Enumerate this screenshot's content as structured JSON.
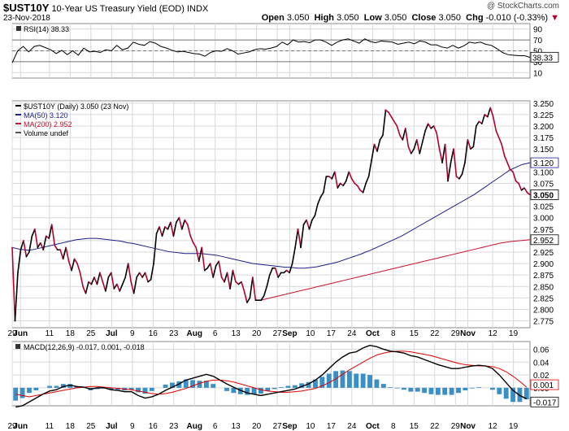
{
  "header": {
    "symbol": "$UST10Y",
    "name": "10-Year US Treasury Yield (EOD)",
    "exchange": "INDX",
    "date": "23-Nov-2018",
    "watermark": "@ StockCharts.com",
    "open_label": "Open",
    "open": "3.050",
    "high_label": "High",
    "high": "3.050",
    "low_label": "Low",
    "low": "3.050",
    "close_label": "Close",
    "close": "3.050",
    "chg_label": "Chg",
    "chg": "-0.010 (-0.33%)"
  },
  "colors": {
    "price": "#000000",
    "down": "#b5002d",
    "ma50": "#1b1f8a",
    "ma200": "#c8102e",
    "rsi": "#000000",
    "macd": "#000000",
    "signal": "#e00000",
    "hist": "#3b8fc4",
    "grid": "#d8d8d8"
  },
  "chart_data": [
    {
      "type": "line",
      "panel": "rsi",
      "legend": [
        "RSI(14) 38.33"
      ],
      "ylim": [
        0,
        100
      ],
      "yticks": [
        "90",
        "70",
        "50",
        "30",
        "10"
      ],
      "levels": [
        70,
        50,
        30
      ],
      "last_value": "38.33",
      "values": [
        28,
        50,
        58,
        48,
        58,
        60,
        56,
        52,
        45,
        51,
        43,
        50,
        42,
        55,
        48,
        49,
        47,
        52,
        50,
        60,
        52,
        55,
        66,
        62,
        60,
        67,
        64,
        58,
        55,
        51,
        48,
        49,
        47,
        45,
        44,
        40,
        47,
        50,
        49,
        54,
        50,
        44,
        46,
        48,
        52,
        54,
        53,
        55,
        58,
        66,
        61,
        70,
        66,
        67,
        65,
        70,
        70,
        66,
        60,
        66,
        70,
        72,
        68,
        64,
        72,
        67,
        65,
        68,
        67,
        66,
        62,
        64,
        66,
        63,
        68,
        66,
        61,
        61,
        57,
        55,
        60,
        55,
        59,
        66,
        64,
        66,
        62,
        60,
        54,
        47,
        43,
        42,
        41,
        41,
        38
      ]
    },
    {
      "type": "line",
      "panel": "price",
      "title": "10-Year US Treasury Yield (EOD)",
      "legend": [
        "$UST10Y (Daily) 3.050 (23 Nov)",
        "MA(50) 3.120",
        "MA(200) 2.952",
        "Volume undef"
      ],
      "ylim": [
        2.76,
        3.255
      ],
      "yticks": [
        "3.250",
        "3.225",
        "3.200",
        "3.175",
        "3.150",
        "3.125",
        "3.100",
        "3.075",
        "3.050",
        "3.025",
        "3.000",
        "2.975",
        "2.950",
        "2.925",
        "2.900",
        "2.875",
        "2.850",
        "2.825",
        "2.800",
        "2.775"
      ],
      "last_labels": {
        "ma50": "3.120",
        "price": "3.050",
        "ma200": "2.952"
      },
      "x_labels": [
        "29",
        "Jun",
        "11",
        "18",
        "25",
        "Jul",
        "9",
        "16",
        "23",
        "Aug",
        "6",
        "13",
        "20",
        "27",
        "Sep",
        "10",
        "17",
        "24",
        "Oct",
        "8",
        "15",
        "22",
        "29",
        "Nov",
        "12",
        "19"
      ],
      "x_label_index": [
        0,
        2,
        9,
        14,
        19,
        24,
        29,
        34,
        39,
        44,
        49,
        54,
        59,
        64,
        67,
        72,
        77,
        82,
        87,
        92,
        97,
        102,
        107,
        110,
        116,
        121
      ],
      "bold_x_labels": [
        "Jun",
        "Jul",
        "Aug",
        "Sep",
        "Oct",
        "Nov"
      ],
      "price": [
        2.935,
        2.775,
        2.88,
        2.93,
        2.95,
        2.915,
        2.925,
        2.96,
        2.975,
        2.935,
        2.945,
        2.93,
        2.96,
        2.955,
        2.985,
        2.94,
        2.93,
        2.93,
        2.91,
        2.935,
        2.905,
        2.885,
        2.91,
        2.9,
        2.88,
        2.85,
        2.835,
        2.86,
        2.855,
        2.87,
        2.855,
        2.88,
        2.86,
        2.84,
        2.87,
        2.88,
        2.845,
        2.855,
        2.84,
        2.855,
        2.87,
        2.9,
        2.86,
        2.835,
        2.87,
        2.88,
        2.87,
        2.88,
        2.86,
        2.865,
        2.9,
        2.965,
        2.98,
        2.96,
        2.98,
        2.975,
        2.99,
        2.96,
        2.99,
        3.0,
        2.975,
        2.995,
        2.985,
        2.96,
        2.945,
        2.935,
        2.905,
        2.935,
        2.885,
        2.89,
        2.9,
        2.87,
        2.895,
        2.905,
        2.87,
        2.86,
        2.88,
        2.845,
        2.885,
        2.86,
        2.855,
        2.86,
        2.84,
        2.815,
        2.825,
        2.87,
        2.82,
        2.82,
        2.82,
        2.83,
        2.85,
        2.875,
        2.89,
        2.89,
        2.87,
        2.88,
        2.88,
        2.885,
        2.88,
        2.9,
        2.935,
        2.975,
        2.935,
        2.985,
        2.995,
        2.975,
        2.995,
        3.005,
        3.03,
        3.045,
        3.055,
        3.09,
        3.09,
        3.085,
        3.1,
        3.065,
        3.075,
        3.07,
        3.08,
        3.1,
        3.085,
        3.075,
        3.07,
        3.06,
        3.055,
        3.075,
        3.09,
        3.125,
        3.16,
        3.145,
        3.17,
        3.18,
        3.235,
        3.23,
        3.22,
        3.21,
        3.2,
        3.18,
        3.17,
        3.195,
        3.155,
        3.14,
        3.15,
        3.17,
        3.14,
        3.165,
        3.19,
        3.205,
        3.195,
        3.2,
        3.185,
        3.15,
        3.12,
        3.16,
        3.08,
        3.12,
        3.15,
        3.09,
        3.085,
        3.095,
        3.12,
        3.17,
        3.15,
        3.155,
        3.2,
        3.21,
        3.205,
        3.225,
        3.22,
        3.24,
        3.22,
        3.19,
        3.175,
        3.16,
        3.135,
        3.12,
        3.105,
        3.1,
        3.08,
        3.075,
        3.06,
        3.065,
        3.055,
        3.05
      ],
      "ma50": [
        2.935,
        2.933,
        2.931,
        2.93,
        2.929,
        2.93,
        2.932,
        2.934,
        2.936,
        2.938,
        2.94,
        2.942,
        2.944,
        2.946,
        2.948,
        2.95,
        2.952,
        2.953,
        2.954,
        2.955,
        2.955,
        2.955,
        2.954,
        2.953,
        2.952,
        2.951,
        2.95,
        2.949,
        2.947,
        2.945,
        2.944,
        2.942,
        2.94,
        2.938,
        2.936,
        2.934,
        2.932,
        2.93,
        2.928,
        2.926,
        2.925,
        2.924,
        2.923,
        2.922,
        2.922,
        2.922,
        2.922,
        2.922,
        2.921,
        2.92,
        2.919,
        2.918,
        2.916,
        2.914,
        2.912,
        2.91,
        2.908,
        2.906,
        2.904,
        2.902,
        2.9,
        2.899,
        2.898,
        2.897,
        2.896,
        2.895,
        2.894,
        2.893,
        2.892,
        2.892,
        2.891,
        2.89,
        2.89,
        2.89,
        2.891,
        2.892,
        2.893,
        2.895,
        2.897,
        2.899,
        2.901,
        2.903,
        2.906,
        2.909,
        2.912,
        2.915,
        2.918,
        2.921,
        2.925,
        2.928,
        2.932,
        2.936,
        2.94,
        2.944,
        2.948,
        2.952,
        2.956,
        2.96,
        2.965,
        2.97,
        2.975,
        2.98,
        2.985,
        2.99,
        2.995,
        3.0,
        3.005,
        3.01,
        3.015,
        3.02,
        3.025,
        3.03,
        3.035,
        3.04,
        3.045,
        3.05,
        3.056,
        3.062,
        3.068,
        3.074,
        3.08,
        3.086,
        3.092,
        3.098,
        3.104,
        3.108,
        3.112,
        3.116,
        3.118,
        3.12
      ],
      "ma200": [
        2.82,
        2.825,
        2.83,
        2.835,
        2.84,
        2.845,
        2.85,
        2.855,
        2.86,
        2.865,
        2.87,
        2.875,
        2.88,
        2.885,
        2.89,
        2.895,
        2.9,
        2.905,
        2.91,
        2.915,
        2.92,
        2.925,
        2.93,
        2.935,
        2.94,
        2.945,
        2.948,
        2.95,
        2.952
      ]
    },
    {
      "type": "line",
      "panel": "macd",
      "legend": [
        "MACD(12,26,9) -0.017, 0.001, -0.018"
      ],
      "ylim": [
        -0.028,
        0.072
      ],
      "yticks": [
        "0.06",
        "0.04",
        "0.02",
        "0.00"
      ],
      "last_labels": {
        "signal": "0.001",
        "macd": "-0.017"
      },
      "macd": [
        -0.03,
        -0.028,
        -0.022,
        -0.016,
        -0.01,
        -0.005,
        -0.003,
        0.002,
        0.004,
        0.002,
        0.001,
        -0.002,
        0.0,
        0.0,
        -0.003,
        -0.004,
        -0.006,
        -0.006,
        -0.012,
        -0.016,
        -0.014,
        -0.01,
        -0.004,
        0.001,
        0.006,
        0.012,
        0.015,
        0.018,
        0.021,
        0.018,
        0.012,
        0.006,
        0.001,
        -0.004,
        -0.008,
        -0.01,
        -0.012,
        -0.01,
        -0.008,
        -0.006,
        -0.004,
        -0.002,
        0.002,
        0.006,
        0.012,
        0.02,
        0.03,
        0.04,
        0.048,
        0.054,
        0.056,
        0.062,
        0.066,
        0.064,
        0.06,
        0.057,
        0.056,
        0.054,
        0.05,
        0.048,
        0.044,
        0.04,
        0.036,
        0.033,
        0.03,
        0.03,
        0.032,
        0.034,
        0.035,
        0.034,
        0.03,
        0.02,
        0.008,
        -0.004,
        -0.012,
        -0.017
      ],
      "signal": [
        -0.01,
        -0.012,
        -0.014,
        -0.012,
        -0.01,
        -0.008,
        -0.006,
        -0.004,
        -0.002,
        0.0,
        0.001,
        0.002,
        0.002,
        0.001,
        0.0,
        -0.001,
        -0.002,
        -0.003,
        -0.005,
        -0.007,
        -0.009,
        -0.01,
        -0.009,
        -0.007,
        -0.004,
        -0.001,
        0.003,
        0.007,
        0.01,
        0.012,
        0.012,
        0.011,
        0.009,
        0.006,
        0.003,
        0.0,
        -0.003,
        -0.005,
        -0.006,
        -0.007,
        -0.007,
        -0.006,
        -0.005,
        -0.003,
        -0.001,
        0.003,
        0.008,
        0.014,
        0.021,
        0.028,
        0.034,
        0.04,
        0.046,
        0.051,
        0.054,
        0.056,
        0.057,
        0.057,
        0.056,
        0.054,
        0.052,
        0.05,
        0.047,
        0.044,
        0.041,
        0.038,
        0.036,
        0.035,
        0.034,
        0.034,
        0.033,
        0.03,
        0.025,
        0.018,
        0.01,
        0.001
      ]
    }
  ]
}
